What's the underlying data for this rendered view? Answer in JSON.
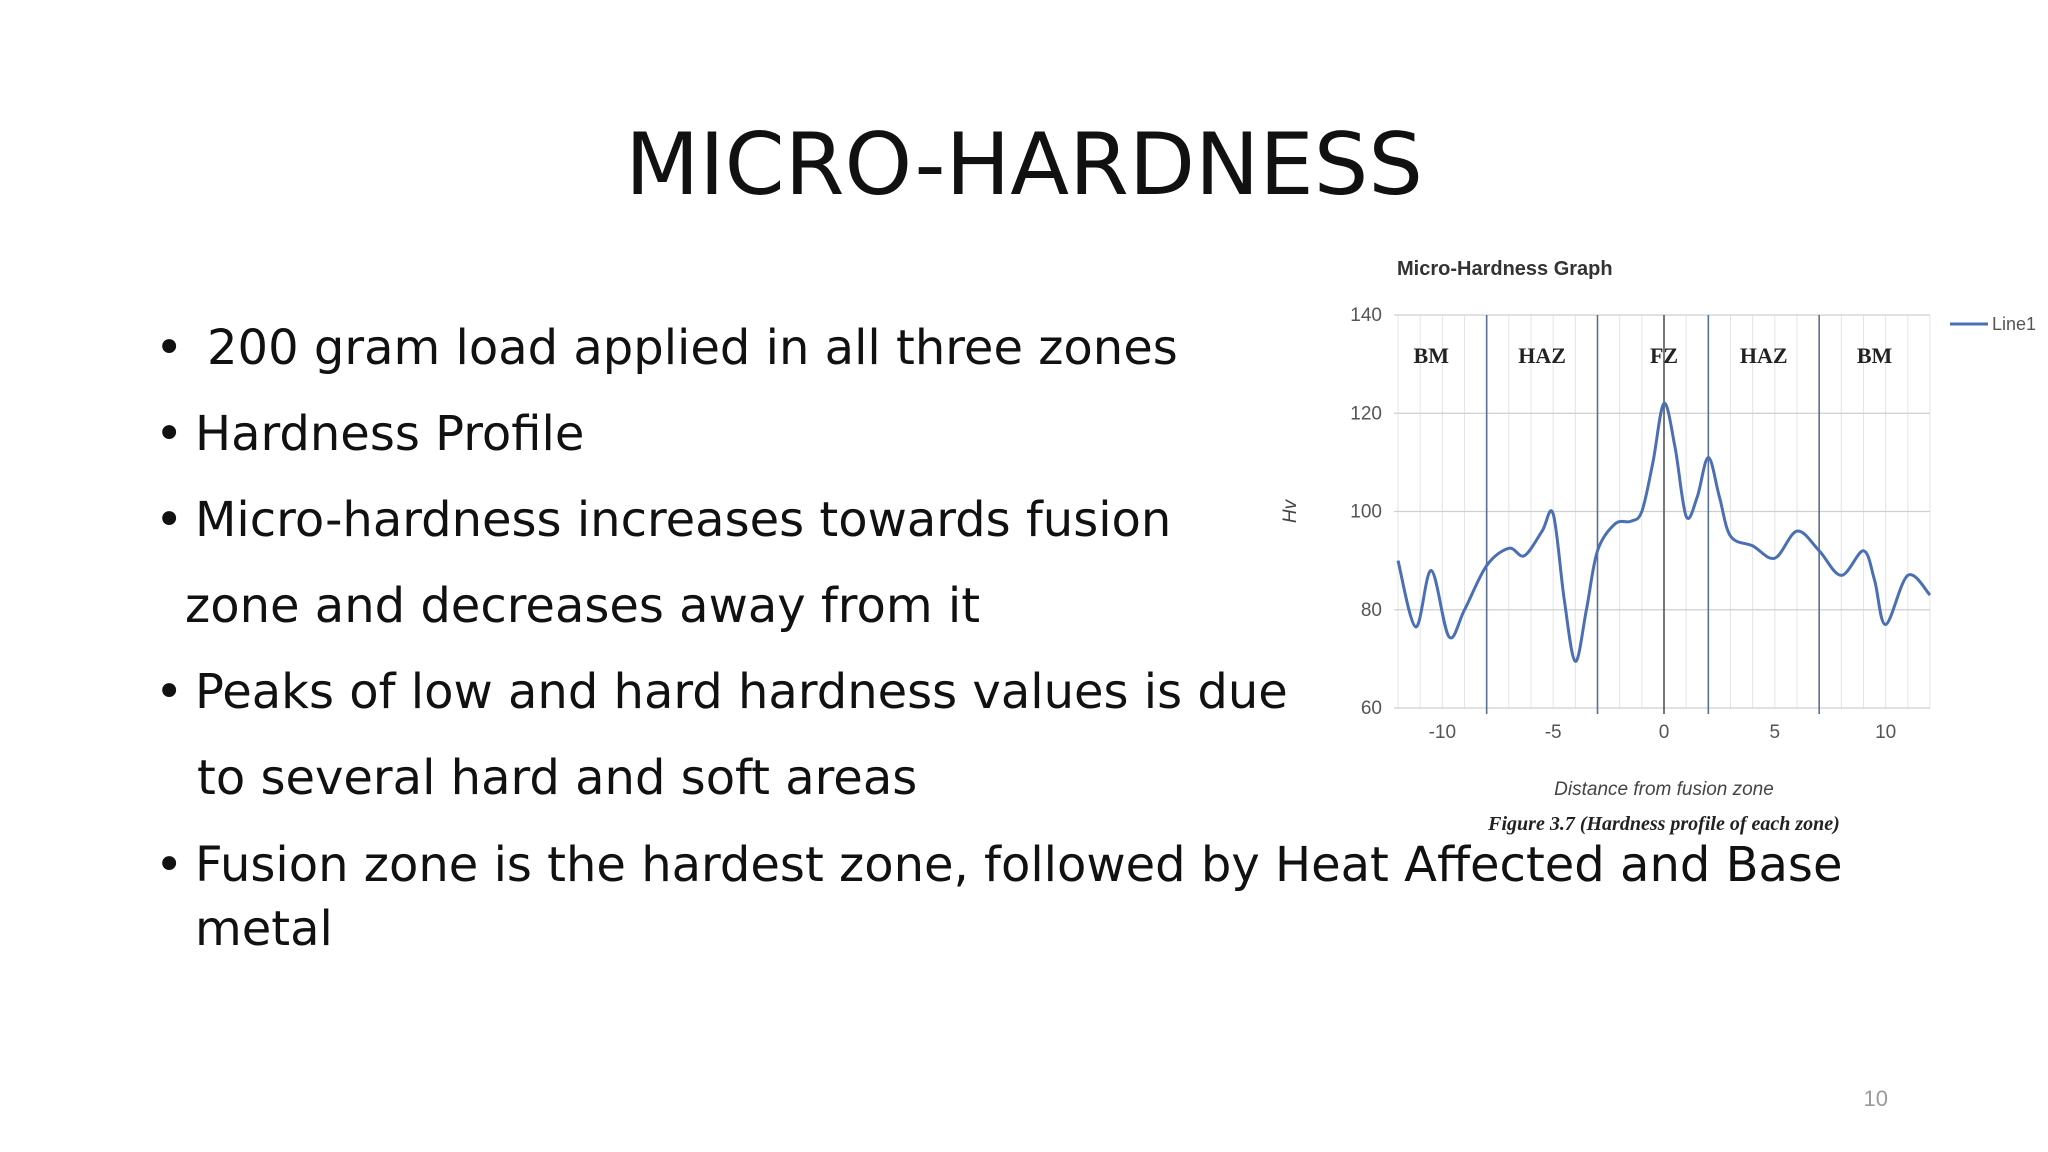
{
  "slide": {
    "title": "MICRO-HARDNESS",
    "page_number": "10",
    "bullets": [
      {
        "marker": "•",
        "text": " 200 gram load applied in all three zones"
      },
      {
        "marker": "•",
        "text": "Hardness Profile"
      },
      {
        "marker": "•",
        "text": "Micro-hardness increases towards fusion",
        "continuation": "zone and decreases away from it"
      },
      {
        "marker": "•",
        "text": "Peaks of low and hard hardness values is due",
        "continuation": "to several hard and soft areas"
      },
      {
        "marker": "•",
        "text": "Fusion zone is the hardest zone, followed by Heat Affected and Base metal"
      }
    ]
  },
  "chart_data": {
    "type": "line",
    "title": "Micro-Hardness Graph",
    "xlabel": "Distance from fusion zone",
    "ylabel": "Hv",
    "caption": "Figure 3.7 (Hardness profile of each zone)",
    "xlim": [
      -12,
      12
    ],
    "ylim": [
      60,
      140
    ],
    "x_ticks": [
      -10,
      -5,
      0,
      5,
      10
    ],
    "x_tick_labels": [
      "-10",
      "-5",
      "0",
      "5",
      "10"
    ],
    "y_ticks": [
      60,
      80,
      100,
      120,
      140
    ],
    "y_tick_labels": [
      "60",
      "80",
      "100",
      "120",
      "140"
    ],
    "grid": true,
    "legend": "right",
    "zone_boundaries": [
      -8,
      -3,
      0,
      2,
      7
    ],
    "zones": [
      {
        "label": "BM",
        "x": -10.5
      },
      {
        "label": "HAZ",
        "x": -5.5
      },
      {
        "label": "FZ",
        "x": 0
      },
      {
        "label": "HAZ",
        "x": 4.5
      },
      {
        "label": "BM",
        "x": 9.5
      }
    ],
    "series": [
      {
        "name": "Line1",
        "color": "#4a6fb5",
        "x": [
          -12,
          -11.2,
          -10.5,
          -9.7,
          -9,
          -8,
          -7,
          -6.3,
          -5.5,
          -5,
          -4.5,
          -4,
          -3.5,
          -3,
          -2.2,
          -1.5,
          -1,
          -0.5,
          0,
          0.5,
          1,
          1.5,
          2,
          2.5,
          3,
          4,
          5,
          6,
          7,
          8,
          9,
          9.5,
          10,
          11,
          12
        ],
        "values": [
          90,
          76.5,
          88,
          74.5,
          80,
          89,
          92.5,
          91,
          96,
          99.5,
          82,
          69.5,
          80,
          92,
          97.5,
          98,
          100,
          110,
          122,
          113,
          99,
          103,
          111,
          103,
          95,
          93,
          90.5,
          96,
          92,
          87,
          92,
          86,
          77,
          87,
          83
        ]
      }
    ]
  }
}
